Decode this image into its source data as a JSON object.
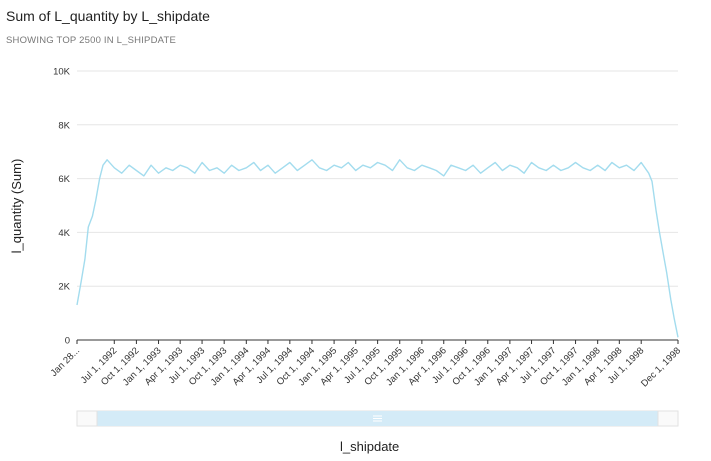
{
  "chart_data": {
    "type": "line",
    "title": "Sum of L_quantity by L_shipdate",
    "subtitle": "SHOWING TOP 2500 IN L_SHIPDATE",
    "xlabel": "l_shipdate",
    "ylabel": "l_quantity (Sum)",
    "ylim": [
      0,
      10000
    ],
    "yticks": [
      "0",
      "2K",
      "4K",
      "6K",
      "8K",
      "10K"
    ],
    "ytick_values": [
      0,
      2000,
      4000,
      6000,
      8000,
      10000
    ],
    "xlim": [
      "1992-01-28",
      "1998-12-01"
    ],
    "xticks": [
      "Jan 28...",
      "Jul 1, 1992",
      "Oct 1, 1992",
      "Jan 1, 1993",
      "Apr 1, 1993",
      "Jul 1, 1993",
      "Oct 1, 1993",
      "Jan 1, 1994",
      "Apr 1, 1994",
      "Jul 1, 1994",
      "Oct 1, 1994",
      "Jan 1, 1995",
      "Apr 1, 1995",
      "Jul 1, 1995",
      "Oct 1, 1995",
      "Jan 1, 1996",
      "Apr 1, 1996",
      "Jul 1, 1996",
      "Oct 1, 1996",
      "Jan 1, 1997",
      "Apr 1, 1997",
      "Jul 1, 1997",
      "Oct 1, 1997",
      "Jan 1, 1998",
      "Apr 1, 1998",
      "Jul 1, 1998",
      "Dec 1, 1998"
    ],
    "xtick_dates": [
      "1992-01-28",
      "1992-07-01",
      "1992-10-01",
      "1993-01-01",
      "1993-04-01",
      "1993-07-01",
      "1993-10-01",
      "1994-01-01",
      "1994-04-01",
      "1994-07-01",
      "1994-10-01",
      "1995-01-01",
      "1995-04-01",
      "1995-07-01",
      "1995-10-01",
      "1996-01-01",
      "1996-04-01",
      "1996-07-01",
      "1996-10-01",
      "1997-01-01",
      "1997-04-01",
      "1997-07-01",
      "1997-10-01",
      "1998-01-01",
      "1998-04-01",
      "1998-07-01",
      "1998-12-01"
    ],
    "grid": true,
    "series": [
      {
        "color": "#a3dcee",
        "x": [
          "1992-01-28",
          "1992-02-15",
          "1992-03-01",
          "1992-03-15",
          "1992-04-01",
          "1992-04-15",
          "1992-05-01",
          "1992-05-15",
          "1992-06-01",
          "1992-07-01",
          "1992-08-01",
          "1992-09-01",
          "1992-10-01",
          "1992-11-01",
          "1992-12-01",
          "1993-01-01",
          "1993-02-01",
          "1993-03-01",
          "1993-04-01",
          "1993-05-01",
          "1993-06-01",
          "1993-07-01",
          "1993-08-01",
          "1993-09-01",
          "1993-10-01",
          "1993-11-01",
          "1993-12-01",
          "1994-01-01",
          "1994-02-01",
          "1994-03-01",
          "1994-04-01",
          "1994-05-01",
          "1994-06-01",
          "1994-07-01",
          "1994-08-01",
          "1994-09-01",
          "1994-10-01",
          "1994-11-01",
          "1994-12-01",
          "1995-01-01",
          "1995-02-01",
          "1995-03-01",
          "1995-04-01",
          "1995-05-01",
          "1995-06-01",
          "1995-07-01",
          "1995-08-01",
          "1995-09-01",
          "1995-10-01",
          "1995-11-01",
          "1995-12-01",
          "1996-01-01",
          "1996-02-01",
          "1996-03-01",
          "1996-04-01",
          "1996-05-01",
          "1996-06-01",
          "1996-07-01",
          "1996-08-01",
          "1996-09-01",
          "1996-10-01",
          "1996-11-01",
          "1996-12-01",
          "1997-01-01",
          "1997-02-01",
          "1997-03-01",
          "1997-04-01",
          "1997-05-01",
          "1997-06-01",
          "1997-07-01",
          "1997-08-01",
          "1997-09-01",
          "1997-10-01",
          "1997-11-01",
          "1997-12-01",
          "1998-01-01",
          "1998-02-01",
          "1998-03-01",
          "1998-04-01",
          "1998-05-01",
          "1998-06-01",
          "1998-07-01",
          "1998-08-01",
          "1998-08-15",
          "1998-09-01",
          "1998-09-15",
          "1998-10-01",
          "1998-10-15",
          "1998-11-01",
          "1998-11-15",
          "1998-12-01"
        ],
        "y": [
          1300,
          2200,
          3000,
          4200,
          4600,
          5200,
          6000,
          6500,
          6700,
          6400,
          6200,
          6500,
          6300,
          6100,
          6500,
          6200,
          6400,
          6300,
          6500,
          6400,
          6200,
          6600,
          6300,
          6400,
          6200,
          6500,
          6300,
          6400,
          6600,
          6300,
          6500,
          6200,
          6400,
          6600,
          6300,
          6500,
          6700,
          6400,
          6300,
          6500,
          6400,
          6600,
          6300,
          6500,
          6400,
          6600,
          6500,
          6300,
          6700,
          6400,
          6300,
          6500,
          6400,
          6300,
          6100,
          6500,
          6400,
          6300,
          6500,
          6200,
          6400,
          6600,
          6300,
          6500,
          6400,
          6200,
          6600,
          6400,
          6300,
          6500,
          6300,
          6400,
          6600,
          6400,
          6300,
          6500,
          6300,
          6600,
          6400,
          6500,
          6300,
          6600,
          6200,
          5900,
          4800,
          4000,
          3200,
          2500,
          1500,
          800,
          100
        ]
      }
    ]
  },
  "scrollbar": {
    "handle_icon": "grip-lines-icon"
  }
}
